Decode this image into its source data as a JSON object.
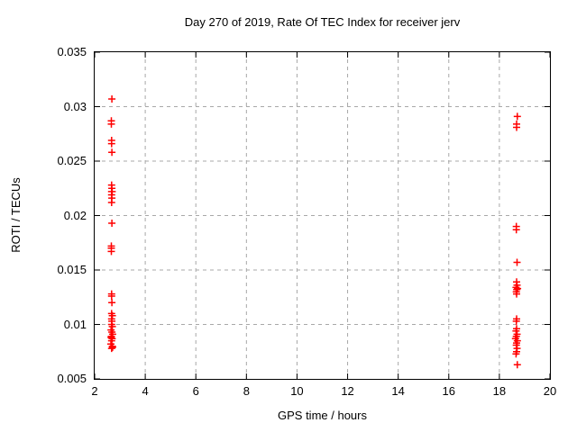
{
  "window": {
    "background": "#ffffff"
  },
  "chart_data": {
    "type": "scatter",
    "title": "Day 270 of 2019, Rate Of TEC Index for receiver jerv",
    "xlabel": "GPS time / hours",
    "ylabel": "ROTI / TECUs",
    "xlim": [
      2,
      20
    ],
    "ylim": [
      0.005,
      0.035
    ],
    "xticks": {
      "values": [
        2,
        4,
        6,
        8,
        10,
        12,
        14,
        16,
        18,
        20
      ],
      "labels": [
        "2",
        "4",
        "6",
        "8",
        "10",
        "12",
        "14",
        "16",
        "18",
        "20"
      ]
    },
    "yticks": {
      "values": [
        0.005,
        0.01,
        0.015,
        0.02,
        0.025,
        0.03,
        0.035
      ],
      "labels": [
        "0.005",
        "0.01",
        "0.015",
        "0.02",
        "0.025",
        "0.03",
        "0.035"
      ]
    },
    "grid": true,
    "legend": "none",
    "marker": "plus",
    "marker_color": "#ff0000",
    "grid_color": "#a8a8a8",
    "axis_color": "#000000",
    "series": [
      {
        "name": "ROTI",
        "points": [
          [
            2.68,
            0.0307
          ],
          [
            2.66,
            0.0287
          ],
          [
            2.66,
            0.0284
          ],
          [
            2.67,
            0.0269
          ],
          [
            2.67,
            0.0266
          ],
          [
            2.68,
            0.0258
          ],
          [
            2.67,
            0.0228
          ],
          [
            2.68,
            0.0225
          ],
          [
            2.67,
            0.0222
          ],
          [
            2.69,
            0.0222
          ],
          [
            2.67,
            0.0219
          ],
          [
            2.68,
            0.0216
          ],
          [
            2.67,
            0.0212
          ],
          [
            2.68,
            0.0193
          ],
          [
            2.66,
            0.0172
          ],
          [
            2.66,
            0.017
          ],
          [
            2.66,
            0.0167
          ],
          [
            2.67,
            0.0128
          ],
          [
            2.67,
            0.0126
          ],
          [
            2.68,
            0.012
          ],
          [
            2.67,
            0.011
          ],
          [
            2.7,
            0.0108
          ],
          [
            2.67,
            0.0105
          ],
          [
            2.68,
            0.0103
          ],
          [
            2.67,
            0.01
          ],
          [
            2.7,
            0.0098
          ],
          [
            2.65,
            0.0095
          ],
          [
            2.68,
            0.0093
          ],
          [
            2.71,
            0.0091
          ],
          [
            2.66,
            0.0089
          ],
          [
            2.65,
            0.0088
          ],
          [
            2.69,
            0.0087
          ],
          [
            2.67,
            0.0085
          ],
          [
            2.64,
            0.0082
          ],
          [
            2.7,
            0.008
          ],
          [
            2.71,
            0.0079
          ],
          [
            2.67,
            0.0078
          ],
          [
            18.71,
            0.0291
          ],
          [
            18.68,
            0.0284
          ],
          [
            18.68,
            0.0281
          ],
          [
            18.67,
            0.019
          ],
          [
            18.67,
            0.0187
          ],
          [
            18.7,
            0.0157
          ],
          [
            18.68,
            0.0139
          ],
          [
            18.7,
            0.0136
          ],
          [
            18.66,
            0.0134
          ],
          [
            18.72,
            0.0133
          ],
          [
            18.69,
            0.0132
          ],
          [
            18.67,
            0.013
          ],
          [
            18.68,
            0.0128
          ],
          [
            18.68,
            0.0105
          ],
          [
            18.67,
            0.0103
          ],
          [
            18.68,
            0.0096
          ],
          [
            18.66,
            0.0094
          ],
          [
            18.7,
            0.0091
          ],
          [
            18.67,
            0.0089
          ],
          [
            18.64,
            0.0087
          ],
          [
            18.71,
            0.0085
          ],
          [
            18.68,
            0.0083
          ],
          [
            18.67,
            0.0081
          ],
          [
            18.7,
            0.0078
          ],
          [
            18.68,
            0.0075
          ],
          [
            18.66,
            0.0073
          ],
          [
            18.71,
            0.0063
          ]
        ]
      }
    ]
  }
}
